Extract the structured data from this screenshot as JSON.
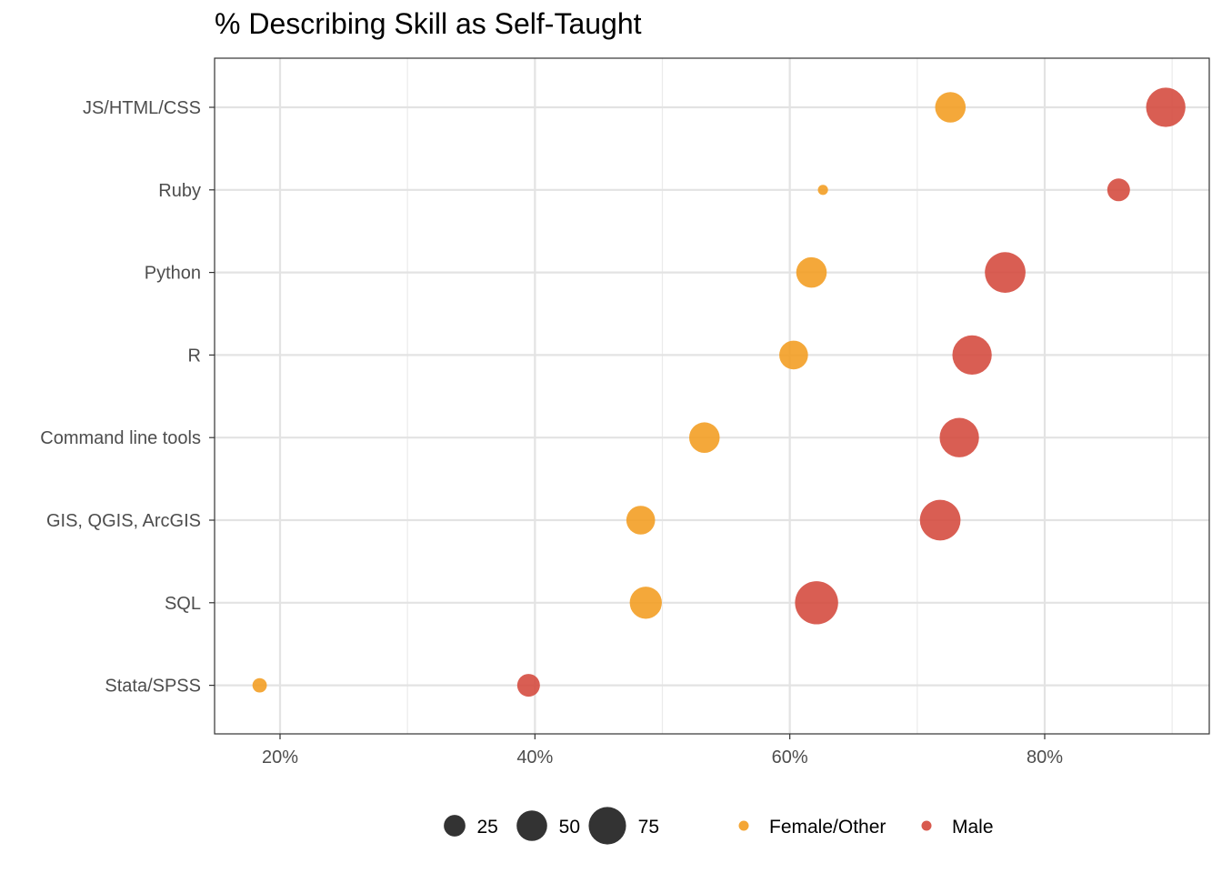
{
  "chart_data": {
    "type": "scatter",
    "title": "% Describing Skill as Self-Taught",
    "xlabel": "",
    "ylabel": "",
    "xlim": [
      0.15,
      0.93
    ],
    "x_ticks": [
      {
        "value": 0.2,
        "label": "20%"
      },
      {
        "value": 0.4,
        "label": "40%"
      },
      {
        "value": 0.6,
        "label": "60%"
      },
      {
        "value": 0.8,
        "label": "80%"
      }
    ],
    "x_minor_ticks": [
      0.3,
      0.5,
      0.7,
      0.9
    ],
    "categories": [
      "JS/HTML/CSS",
      "Ruby",
      "Python",
      "R",
      "Command line tools",
      "GIS, QGIS, ArcGIS",
      "SQL",
      "Stata/SPSS"
    ],
    "grid": true,
    "legend_position": "bottom",
    "series": [
      {
        "name": "Female/Other",
        "color": "#f39c1f",
        "points": [
          {
            "category": "JS/HTML/CSS",
            "x": 0.726,
            "size": 45
          },
          {
            "category": "Ruby",
            "x": 0.626,
            "size": 5
          },
          {
            "category": "Python",
            "x": 0.617,
            "size": 45
          },
          {
            "category": "R",
            "x": 0.603,
            "size": 40
          },
          {
            "category": "Command line tools",
            "x": 0.533,
            "size": 45
          },
          {
            "category": "GIS, QGIS, ArcGIS",
            "x": 0.483,
            "size": 40
          },
          {
            "category": "SQL",
            "x": 0.487,
            "size": 50
          },
          {
            "category": "Stata/SPSS",
            "x": 0.184,
            "size": 10
          }
        ]
      },
      {
        "name": "Male",
        "color": "#d4483b",
        "points": [
          {
            "category": "JS/HTML/CSS",
            "x": 0.895,
            "size": 75
          },
          {
            "category": "Ruby",
            "x": 0.858,
            "size": 25
          },
          {
            "category": "Python",
            "x": 0.769,
            "size": 80
          },
          {
            "category": "R",
            "x": 0.743,
            "size": 75
          },
          {
            "category": "Command line tools",
            "x": 0.733,
            "size": 75
          },
          {
            "category": "GIS, QGIS, ArcGIS",
            "x": 0.718,
            "size": 80
          },
          {
            "category": "SQL",
            "x": 0.621,
            "size": 90
          },
          {
            "category": "Stata/SPSS",
            "x": 0.395,
            "size": 25
          }
        ]
      }
    ],
    "size_legend": [
      {
        "value": 25,
        "label": "25"
      },
      {
        "value": 50,
        "label": "50"
      },
      {
        "value": 75,
        "label": "75"
      }
    ]
  }
}
